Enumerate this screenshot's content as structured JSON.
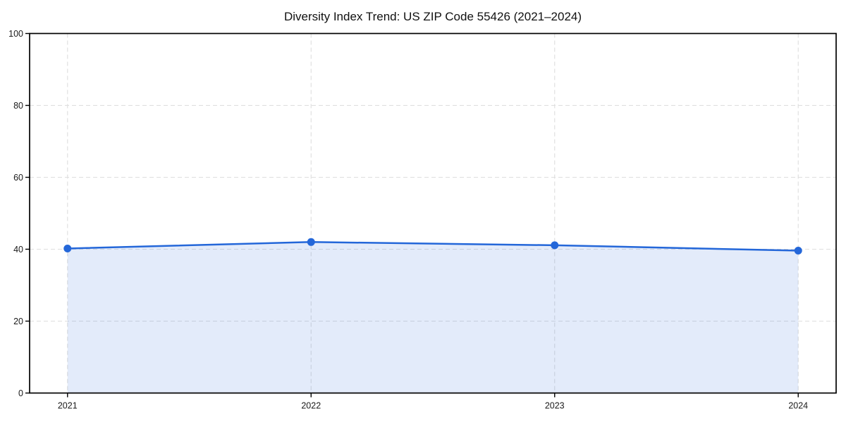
{
  "chart_data": {
    "type": "area",
    "title": "Diversity Index Trend: US ZIP Code 55426 (2021–2024)",
    "categories": [
      "2021",
      "2022",
      "2023",
      "2024"
    ],
    "values": [
      40.2,
      42.0,
      41.1,
      39.6
    ],
    "series_name": "Diversity Index",
    "xlabel": "",
    "ylabel": "",
    "ylim": [
      0,
      100
    ],
    "yticks": [
      0,
      20,
      40,
      60,
      80,
      100
    ],
    "ytick_labels": [
      "0",
      "20",
      "40",
      "60",
      "80",
      "100"
    ],
    "grid": true,
    "grid_style": "dashed",
    "legend_position": "none",
    "marker": "circle",
    "colors": {
      "line": "#2467d9",
      "marker": "#2467d9",
      "area_fill": "rgba(36,103,217,0.13)",
      "grid": "#dedede",
      "spine": "#000000",
      "tick_text": "#1a1a1a",
      "background": "#ffffff"
    }
  }
}
